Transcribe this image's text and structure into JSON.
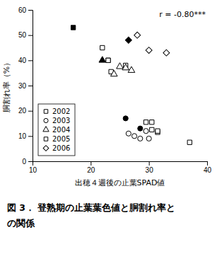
{
  "chart_data": {
    "type": "scatter",
    "x_label": "出穂４週後の止葉SPAD値",
    "y_label": "胴割れ率（%）",
    "annotations": [
      {
        "text": "r = -0.80***"
      }
    ],
    "caption": [
      "図 3． 登熟期の止葉葉色値と胴割れ率と",
      "の関係"
    ],
    "xlim": [
      10,
      40
    ],
    "ylim": [
      0,
      60
    ],
    "xticks": [
      10,
      20,
      30,
      40
    ],
    "yticks": [
      0,
      10,
      20,
      30,
      40,
      50,
      60
    ],
    "grid": false,
    "legend": "lower left",
    "series": [
      {
        "name": "2002",
        "marker": "square",
        "x": [
          22.0,
          23.0,
          23.5,
          26.0,
          29.5,
          30.5,
          31.5,
          37.0,
          17.0
        ],
        "values": [
          45.0,
          40.0,
          35.5,
          38.0,
          15.5,
          12.5,
          11.5,
          7.5,
          53.0
        ],
        "colors": [
          "white",
          "white",
          "white",
          "white",
          "white",
          "white",
          "white",
          "white",
          "black"
        ]
      },
      {
        "name": "2003",
        "marker": "circle",
        "x": [
          26.5,
          27.5,
          28.5,
          29.5,
          30.0,
          26.0,
          28.5
        ],
        "values": [
          11.0,
          10.0,
          9.0,
          12.0,
          9.0,
          17.0,
          13.0
        ],
        "colors": [
          "white",
          "white",
          "white",
          "white",
          "white",
          "black",
          "black"
        ]
      },
      {
        "name": "2004",
        "marker": "triangle",
        "x": [
          24.0,
          25.0,
          26.0,
          27.0,
          22.0
        ],
        "values": [
          34.5,
          37.5,
          37.0,
          36.0,
          40.0
        ],
        "colors": [
          "white",
          "white",
          "white",
          "white",
          "black"
        ]
      },
      {
        "name": "2005",
        "marker": "square",
        "x": [
          23.0,
          30.5,
          31.5
        ],
        "values": [
          40.0,
          15.5,
          12.0
        ],
        "colors": [
          "white",
          "white",
          "white"
        ]
      },
      {
        "name": "2006",
        "marker": "diamond",
        "x": [
          28.0,
          30.0,
          33.0,
          26.5
        ],
        "values": [
          50.0,
          44.0,
          43.0,
          48.0
        ],
        "colors": [
          "white",
          "white",
          "white",
          "black"
        ]
      }
    ]
  }
}
